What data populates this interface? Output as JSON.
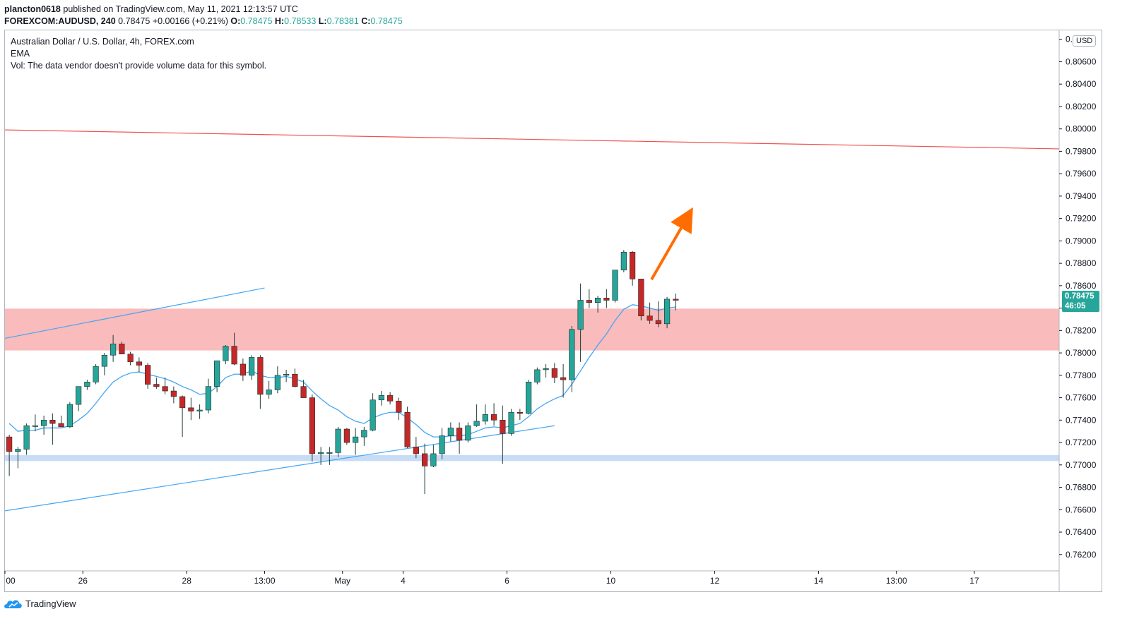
{
  "header": {
    "publisher": "plancton0618",
    "published_text": "published on TradingView.com, May 11, 2021 12:13:57 UTC",
    "symbol": "FOREXCOM:AUDUSD, 240",
    "last": "0.78475",
    "change": "+0.00166 (+0.21%)",
    "o_label": "O:",
    "o_value": "0.78475",
    "h_label": "H:",
    "h_value": "0.78533",
    "l_label": "L:",
    "l_value": "0.78381",
    "c_label": "C:",
    "c_value": "0.78475"
  },
  "legend": {
    "title": "Australian Dollar / U.S. Dollar, 4h, FOREX.com",
    "indicator": "EMA",
    "volume": "Vol: The data vendor doesn't provide volume data for this symbol."
  },
  "price_axis": {
    "currency": "USD",
    "ticks": [
      "0.80800",
      "0.80600",
      "0.80400",
      "0.80200",
      "0.80000",
      "0.79800",
      "0.79600",
      "0.79400",
      "0.79200",
      "0.79000",
      "0.78800",
      "0.78600",
      "0.78400",
      "0.78200",
      "0.78000",
      "0.77800",
      "0.77600",
      "0.77400",
      "0.77200",
      "0.77000",
      "0.76800",
      "0.76600",
      "0.76400",
      "0.76200"
    ],
    "current_price": "0.78475",
    "countdown": "46:05"
  },
  "time_axis": {
    "ticks": [
      {
        "label": "00",
        "bar": -0.5
      },
      {
        "label": "26",
        "bar": 8.5
      },
      {
        "label": "28",
        "bar": 20.5
      },
      {
        "label": "13:00",
        "bar": 29.5
      },
      {
        "label": "May",
        "bar": 38.5
      },
      {
        "label": "4",
        "bar": 45.5
      },
      {
        "label": "6",
        "bar": 57.5
      },
      {
        "label": "10",
        "bar": 69.5
      },
      {
        "label": "12",
        "bar": 81.5
      },
      {
        "label": "14",
        "bar": 93.5
      },
      {
        "label": "13:00",
        "bar": 102.5
      },
      {
        "label": "17",
        "bar": 111.5
      }
    ]
  },
  "footer": {
    "brand": "TradingView"
  },
  "colors": {
    "up": "#26a69a",
    "down": "#c62828",
    "ema": "#42a5f5",
    "resistance_zone": "#f8b4b4",
    "support_zone": "#c9dcf6",
    "red_line": "#ef5350",
    "arrow": "#ff6d00"
  },
  "chart_data": {
    "type": "candlestick",
    "timeframe": "4h",
    "y_range": [
      0.7606,
      0.8088
    ],
    "bar_range": [
      -0.5,
      121.3
    ],
    "candles": [
      [
        0.7725,
        0.7727,
        0.769,
        0.7712
      ],
      [
        0.7712,
        0.7716,
        0.7697,
        0.7714
      ],
      [
        0.7714,
        0.7737,
        0.7709,
        0.7735
      ],
      [
        0.7735,
        0.7745,
        0.773,
        0.7735
      ],
      [
        0.7735,
        0.7744,
        0.7727,
        0.774
      ],
      [
        0.774,
        0.7746,
        0.7718,
        0.7737
      ],
      [
        0.7737,
        0.7744,
        0.7734,
        0.7734
      ],
      [
        0.7734,
        0.7756,
        0.7733,
        0.7754
      ],
      [
        0.7754,
        0.777,
        0.7748,
        0.777
      ],
      [
        0.777,
        0.7776,
        0.7767,
        0.7774
      ],
      [
        0.7774,
        0.779,
        0.7772,
        0.7788
      ],
      [
        0.7788,
        0.78,
        0.778,
        0.7798
      ],
      [
        0.7798,
        0.7816,
        0.7792,
        0.7808
      ],
      [
        0.7808,
        0.781,
        0.78,
        0.7799
      ],
      [
        0.7799,
        0.7801,
        0.7789,
        0.7792
      ],
      [
        0.7792,
        0.7796,
        0.7783,
        0.7789
      ],
      [
        0.7789,
        0.7791,
        0.7768,
        0.7772
      ],
      [
        0.7772,
        0.7778,
        0.7768,
        0.777
      ],
      [
        0.777,
        0.7778,
        0.7763,
        0.7766
      ],
      [
        0.7766,
        0.777,
        0.7755,
        0.7761
      ],
      [
        0.7761,
        0.7762,
        0.7725,
        0.7751
      ],
      [
        0.7751,
        0.776,
        0.774,
        0.7748
      ],
      [
        0.7748,
        0.7754,
        0.7741,
        0.7749
      ],
      [
        0.7749,
        0.7777,
        0.7746,
        0.777
      ],
      [
        0.777,
        0.779,
        0.7765,
        0.7793
      ],
      [
        0.7793,
        0.7807,
        0.779,
        0.7806
      ],
      [
        0.7806,
        0.7818,
        0.7789,
        0.779
      ],
      [
        0.779,
        0.7795,
        0.7775,
        0.778
      ],
      [
        0.778,
        0.7798,
        0.7776,
        0.7796
      ],
      [
        0.7796,
        0.7798,
        0.775,
        0.7763
      ],
      [
        0.7763,
        0.7775,
        0.7759,
        0.7767
      ],
      [
        0.7767,
        0.7788,
        0.7764,
        0.778
      ],
      [
        0.778,
        0.7785,
        0.7774,
        0.7781
      ],
      [
        0.7781,
        0.7786,
        0.7769,
        0.777
      ],
      [
        0.777,
        0.7776,
        0.776,
        0.776
      ],
      [
        0.776,
        0.7763,
        0.7703,
        0.771
      ],
      [
        0.771,
        0.7716,
        0.77,
        0.7711
      ],
      [
        0.7711,
        0.7716,
        0.77,
        0.7711
      ],
      [
        0.7711,
        0.7734,
        0.7707,
        0.7732
      ],
      [
        0.7732,
        0.7733,
        0.7718,
        0.772
      ],
      [
        0.772,
        0.7733,
        0.7709,
        0.7725
      ],
      [
        0.7725,
        0.7734,
        0.7717,
        0.7731
      ],
      [
        0.7731,
        0.7764,
        0.773,
        0.7758
      ],
      [
        0.7758,
        0.7766,
        0.7753,
        0.7762
      ],
      [
        0.7762,
        0.7765,
        0.7754,
        0.7757
      ],
      [
        0.7757,
        0.776,
        0.774,
        0.7747
      ],
      [
        0.7747,
        0.7752,
        0.7715,
        0.7716
      ],
      [
        0.7716,
        0.7725,
        0.7706,
        0.771
      ],
      [
        0.771,
        0.7719,
        0.7674,
        0.7699
      ],
      [
        0.7699,
        0.7718,
        0.7698,
        0.771
      ],
      [
        0.771,
        0.7733,
        0.7705,
        0.7726
      ],
      [
        0.7726,
        0.7738,
        0.7721,
        0.7733
      ],
      [
        0.7733,
        0.7738,
        0.771,
        0.7722
      ],
      [
        0.7722,
        0.7738,
        0.772,
        0.7735
      ],
      [
        0.7735,
        0.7754,
        0.7734,
        0.7739
      ],
      [
        0.7739,
        0.7754,
        0.7736,
        0.7745
      ],
      [
        0.7745,
        0.7755,
        0.7735,
        0.774
      ],
      [
        0.774,
        0.7753,
        0.7701,
        0.7728
      ],
      [
        0.7728,
        0.775,
        0.7726,
        0.7747
      ],
      [
        0.7747,
        0.775,
        0.774,
        0.7746
      ],
      [
        0.7746,
        0.7776,
        0.7745,
        0.7774
      ],
      [
        0.7774,
        0.7787,
        0.7772,
        0.7785
      ],
      [
        0.7785,
        0.779,
        0.7778,
        0.7786
      ],
      [
        0.7786,
        0.7791,
        0.7773,
        0.7778
      ],
      [
        0.7778,
        0.779,
        0.776,
        0.7776
      ],
      [
        0.7776,
        0.7824,
        0.7765,
        0.7821
      ],
      [
        0.7821,
        0.7862,
        0.7792,
        0.7847
      ],
      [
        0.7847,
        0.7857,
        0.784,
        0.7845
      ],
      [
        0.7845,
        0.7851,
        0.7836,
        0.7849
      ],
      [
        0.7849,
        0.7857,
        0.784,
        0.7847
      ],
      [
        0.7847,
        0.7874,
        0.7845,
        0.7874
      ],
      [
        0.7874,
        0.7892,
        0.7872,
        0.789
      ],
      [
        0.789,
        0.7891,
        0.786,
        0.7866
      ],
      [
        0.7866,
        0.7866,
        0.7829,
        0.7833
      ],
      [
        0.7833,
        0.7845,
        0.7826,
        0.7829
      ],
      [
        0.7829,
        0.7846,
        0.7823,
        0.7826
      ],
      [
        0.7826,
        0.785,
        0.7822,
        0.7848
      ],
      [
        0.7848,
        0.7853,
        0.7838,
        0.7847
      ]
    ],
    "ema": [
      0.7737,
      0.773,
      0.7731,
      0.7731,
      0.7733,
      0.7733,
      0.7733,
      0.7735,
      0.774,
      0.7746,
      0.7755,
      0.7765,
      0.7774,
      0.7779,
      0.7782,
      0.7783,
      0.7781,
      0.7779,
      0.7777,
      0.7774,
      0.777,
      0.7767,
      0.7763,
      0.7764,
      0.777,
      0.7778,
      0.7781,
      0.7781,
      0.7784,
      0.778,
      0.7778,
      0.7778,
      0.7779,
      0.7777,
      0.7774,
      0.7766,
      0.7759,
      0.7753,
      0.7749,
      0.7743,
      0.7739,
      0.7737,
      0.7742,
      0.7745,
      0.7747,
      0.7747,
      0.7742,
      0.7736,
      0.7729,
      0.7725,
      0.7725,
      0.7726,
      0.7726,
      0.7727,
      0.773,
      0.7733,
      0.7734,
      0.7733,
      0.7735,
      0.7737,
      0.7743,
      0.775,
      0.7755,
      0.7759,
      0.7762,
      0.7772,
      0.7784,
      0.7796,
      0.7807,
      0.7817,
      0.7829,
      0.7839,
      0.7843,
      0.7842,
      0.784,
      0.7838,
      0.784,
      0.7841
    ]
  },
  "drawings": {
    "resistance_zone": [
      0.78022,
      0.78395
    ],
    "support_zone": [
      0.77034,
      0.77088
    ],
    "red_trendline": [
      [
        -0.5,
        0.79991
      ],
      [
        121.3,
        0.79822
      ]
    ],
    "upper_channel_line": [
      [
        -0.5,
        0.7813
      ],
      [
        29.5,
        0.7858
      ]
    ],
    "lower_channel_line": [
      [
        -0.5,
        0.7659
      ],
      [
        63.0,
        0.7735
      ]
    ],
    "arrow": [
      [
        74.2,
        0.78655
      ],
      [
        79.0,
        0.793
      ]
    ]
  }
}
